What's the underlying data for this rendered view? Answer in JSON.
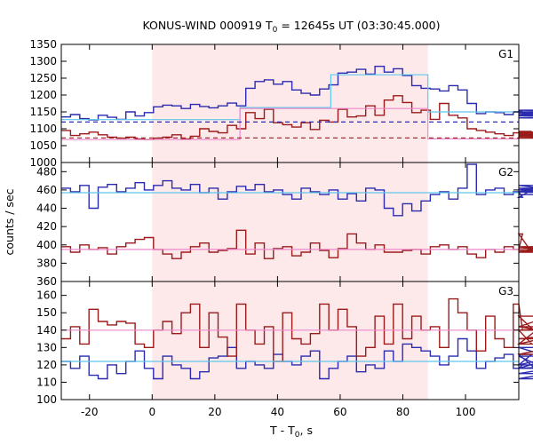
{
  "chart_data": {
    "type": "line",
    "title": "KONUS-WIND 000919 T",
    "title_sub": "0",
    "title_rest": " = 12645s UT (03:30:45.000)",
    "xlabel": "T - T",
    "xlabel_sub": "0",
    "xlabel_rest": ", s",
    "ylabel": "counts / sec",
    "xlim": [
      -29,
      117
    ],
    "xticks": [
      -20,
      0,
      20,
      40,
      60,
      80,
      100
    ],
    "shaded_interval": [
      0,
      88
    ],
    "colors": {
      "shade": "#fde8ea",
      "blue": "#2b2bb0",
      "red": "#9b1b1b",
      "cyan": "#5ec8ec",
      "pink": "#ee88cc"
    },
    "panels": [
      {
        "label": "G1",
        "ylim": [
          1000,
          1350
        ],
        "yticks": [
          1000,
          1050,
          1100,
          1150,
          1200,
          1250,
          1300,
          1350
        ],
        "series": [
          {
            "color": "blue",
            "x0": -29,
            "dx": 2.944,
            "values": [
              1135,
              1142,
              1130,
              1126,
              1140,
              1134,
              1128,
              1150,
              1138,
              1148,
              1165,
              1170,
              1168,
              1160,
              1172,
              1166,
              1162,
              1168,
              1176,
              1168,
              1220,
              1240,
              1245,
              1232,
              1240,
              1215,
              1205,
              1200,
              1218,
              1230,
              1265,
              1268,
              1276,
              1262,
              1285,
              1268,
              1278,
              1258,
              1228,
              1220,
              1218,
              1212,
              1228,
              1215,
              1175,
              1145,
              1150,
              1148,
              1142,
              1150,
              1152,
              1145,
              1140,
              1148,
              1145,
              1132,
              1138,
              1148,
              1155,
              1150
            ]
          },
          {
            "color": "red",
            "x0": -29,
            "dx": 2.944,
            "values": [
              1095,
              1080,
              1085,
              1090,
              1082,
              1075,
              1072,
              1075,
              1070,
              1068,
              1072,
              1075,
              1082,
              1070,
              1078,
              1100,
              1092,
              1088,
              1110,
              1100,
              1148,
              1130,
              1158,
              1118,
              1112,
              1105,
              1118,
              1098,
              1125,
              1120,
              1158,
              1135,
              1138,
              1168,
              1140,
              1185,
              1198,
              1178,
              1148,
              1155,
              1128,
              1175,
              1140,
              1132,
              1100,
              1095,
              1090,
              1085,
              1080,
              1088,
              1085,
              1092,
              1082,
              1090,
              1080,
              1085,
              1072,
              1078,
              1075,
              1072
            ]
          },
          {
            "color": "cyan",
            "steps": [
              [
                -29,
                1127
              ],
              [
                28,
                1163
              ],
              [
                57,
                1260
              ],
              [
                88,
                1150
              ],
              [
                117,
                1150
              ]
            ]
          },
          {
            "color": "pink",
            "steps": [
              [
                -29,
                1068
              ],
              [
                28,
                1160
              ],
              [
                88,
                1070
              ],
              [
                117,
                1070
              ]
            ]
          },
          {
            "color": "blue",
            "dashed": true,
            "steps": [
              [
                -29,
                1120
              ],
              [
                117,
                1120
              ]
            ]
          },
          {
            "color": "red",
            "dashed": true,
            "steps": [
              [
                -29,
                1073
              ],
              [
                117,
                1073
              ]
            ]
          }
        ]
      },
      {
        "label": "G2",
        "ylim": [
          360,
          490
        ],
        "yticks": [
          360,
          380,
          400,
          420,
          440,
          460,
          480
        ],
        "series": [
          {
            "color": "blue",
            "x0": -29,
            "dx": 2.944,
            "values": [
              462,
              458,
              465,
              440,
              463,
              466,
              458,
              462,
              468,
              460,
              465,
              470,
              462,
              460,
              466,
              457,
              462,
              450,
              458,
              464,
              460,
              466,
              458,
              460,
              455,
              450,
              462,
              458,
              455,
              460,
              450,
              456,
              448,
              462,
              460,
              440,
              432,
              445,
              437,
              448,
              455,
              458,
              450,
              462,
              488,
              455,
              460,
              462,
              455,
              458,
              452,
              460,
              462,
              458,
              465,
              458,
              462,
              460,
              458,
              455
            ]
          },
          {
            "color": "red",
            "x0": -29,
            "dx": 2.944,
            "values": [
              398,
              392,
              400,
              395,
              397,
              390,
              398,
              402,
              406,
              408,
              395,
              390,
              385,
              392,
              398,
              402,
              392,
              394,
              396,
              416,
              390,
              402,
              385,
              396,
              398,
              388,
              392,
              402,
              394,
              386,
              396,
              412,
              402,
              395,
              400,
              392,
              392,
              394,
              395,
              390,
              398,
              400,
              395,
              398,
              390,
              386,
              395,
              392,
              398,
              395,
              412,
              392,
              398,
              394,
              392,
              398,
              394,
              396,
              398,
              396
            ]
          },
          {
            "color": "cyan",
            "steps": [
              [
                -29,
                457
              ],
              [
                117,
                457
              ]
            ]
          },
          {
            "color": "pink",
            "steps": [
              [
                -29,
                395
              ],
              [
                117,
                395
              ]
            ]
          }
        ]
      },
      {
        "label": "G3",
        "ylim": [
          100,
          168
        ],
        "yticks": [
          100,
          110,
          120,
          130,
          140,
          150,
          160
        ],
        "series": [
          {
            "color": "blue",
            "x0": -29,
            "dx": 2.944,
            "values": [
              122,
              118,
              125,
              114,
              112,
              120,
              115,
              122,
              128,
              118,
              112,
              125,
              120,
              118,
              112,
              116,
              124,
              125,
              130,
              118,
              122,
              120,
              118,
              126,
              122,
              120,
              125,
              128,
              112,
              118,
              122,
              125,
              116,
              120,
              118,
              128,
              122,
              132,
              130,
              128,
              125,
              120,
              125,
              135,
              128,
              118,
              122,
              124,
              126,
              118,
              120,
              126,
              115,
              118,
              125,
              112,
              118,
              120,
              130,
              115
            ]
          },
          {
            "color": "red",
            "x0": -29,
            "dx": 2.944,
            "values": [
              135,
              142,
              132,
              152,
              145,
              143,
              145,
              144,
              132,
              130,
              140,
              145,
              138,
              150,
              155,
              130,
              150,
              136,
              125,
              155,
              140,
              132,
              142,
              122,
              150,
              135,
              132,
              138,
              155,
              140,
              152,
              142,
              125,
              130,
              148,
              132,
              155,
              135,
              148,
              140,
              142,
              130,
              158,
              150,
              140,
              128,
              148,
              135,
              130,
              155,
              140,
              132,
              142,
              148,
              126,
              132,
              140,
              142,
              135,
              140
            ]
          },
          {
            "color": "cyan",
            "steps": [
              [
                -29,
                122
              ],
              [
                117,
                122
              ]
            ]
          },
          {
            "color": "pink",
            "steps": [
              [
                -29,
                140
              ],
              [
                117,
                140
              ]
            ]
          }
        ]
      }
    ]
  }
}
